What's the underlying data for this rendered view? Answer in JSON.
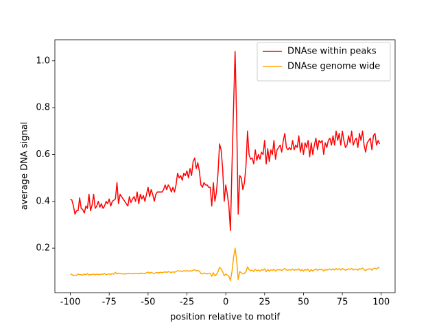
{
  "chart_data": {
    "type": "line",
    "xlabel": "position relative to motif",
    "ylabel": "average DNA signal",
    "legend": "upper right",
    "xlim": [
      -109.95,
      108.95
    ],
    "ylim": [
      0.01,
      1.09
    ],
    "xticks": [
      -100,
      -75,
      -50,
      -25,
      0,
      25,
      50,
      75,
      100
    ],
    "yticks": [
      0.2,
      0.4,
      0.6,
      0.8,
      {
        "value": 1,
        "label": "1.0"
      }
    ],
    "x": [
      -100,
      -99,
      -98,
      -97,
      -96,
      -95,
      -94,
      -93,
      -92,
      -91,
      -90,
      -89,
      -88,
      -87,
      -86,
      -85,
      -84,
      -83,
      -82,
      -81,
      -80,
      -79,
      -78,
      -77,
      -76,
      -75,
      -74,
      -73,
      -72,
      -71,
      -70,
      -69,
      -68,
      -67,
      -66,
      -65,
      -64,
      -63,
      -62,
      -61,
      -60,
      -59,
      -58,
      -57,
      -56,
      -55,
      -54,
      -53,
      -52,
      -51,
      -50,
      -49,
      -48,
      -47,
      -46,
      -45,
      -44,
      -43,
      -42,
      -41,
      -40,
      -39,
      -38,
      -37,
      -36,
      -35,
      -34,
      -33,
      -32,
      -31,
      -30,
      -29,
      -28,
      -27,
      -26,
      -25,
      -24,
      -23,
      -22,
      -21,
      -20,
      -19,
      -18,
      -17,
      -16,
      -15,
      -14,
      -13,
      -12,
      -11,
      -10,
      -9,
      -8,
      -7,
      -6,
      -5,
      -4,
      -3,
      -2,
      -1,
      0,
      1,
      2,
      3,
      4,
      5,
      6,
      7,
      8,
      9,
      10,
      11,
      12,
      13,
      14,
      15,
      16,
      17,
      18,
      19,
      20,
      21,
      22,
      23,
      24,
      25,
      26,
      27,
      28,
      29,
      30,
      31,
      32,
      33,
      34,
      35,
      36,
      37,
      38,
      39,
      40,
      41,
      42,
      43,
      44,
      45,
      46,
      47,
      48,
      49,
      50,
      51,
      52,
      53,
      54,
      55,
      56,
      57,
      58,
      59,
      60,
      61,
      62,
      63,
      64,
      65,
      66,
      67,
      68,
      69,
      70,
      71,
      72,
      73,
      74,
      75,
      76,
      77,
      78,
      79,
      80,
      81,
      82,
      83,
      84,
      85,
      86,
      87,
      88,
      89,
      90,
      91,
      92,
      93,
      94,
      95,
      96,
      97,
      98,
      99
    ],
    "series": [
      {
        "name": "DNAse within peaks",
        "color": "#ff0000",
        "values": [
          0.41,
          0.405,
          0.38,
          0.345,
          0.36,
          0.36,
          0.415,
          0.37,
          0.365,
          0.35,
          0.38,
          0.37,
          0.43,
          0.36,
          0.385,
          0.43,
          0.37,
          0.38,
          0.4,
          0.375,
          0.39,
          0.37,
          0.38,
          0.4,
          0.39,
          0.41,
          0.38,
          0.4,
          0.405,
          0.41,
          0.48,
          0.39,
          0.43,
          0.42,
          0.41,
          0.4,
          0.39,
          0.38,
          0.42,
          0.395,
          0.41,
          0.42,
          0.4,
          0.44,
          0.39,
          0.43,
          0.41,
          0.425,
          0.4,
          0.43,
          0.46,
          0.42,
          0.45,
          0.43,
          0.4,
          0.43,
          0.44,
          0.44,
          0.44,
          0.44,
          0.45,
          0.47,
          0.45,
          0.47,
          0.46,
          0.44,
          0.46,
          0.44,
          0.47,
          0.52,
          0.5,
          0.51,
          0.49,
          0.52,
          0.51,
          0.53,
          0.5,
          0.54,
          0.51,
          0.57,
          0.585,
          0.54,
          0.565,
          0.53,
          0.47,
          0.46,
          0.48,
          0.47,
          0.47,
          0.46,
          0.46,
          0.38,
          0.48,
          0.4,
          0.44,
          0.52,
          0.645,
          0.62,
          0.54,
          0.4,
          0.47,
          0.43,
          0.38,
          0.275,
          0.55,
          0.8,
          1.04,
          0.75,
          0.345,
          0.51,
          0.5,
          0.45,
          0.48,
          0.55,
          0.7,
          0.6,
          0.58,
          0.585,
          0.56,
          0.62,
          0.575,
          0.6,
          0.58,
          0.61,
          0.6,
          0.66,
          0.56,
          0.625,
          0.57,
          0.62,
          0.6,
          0.66,
          0.58,
          0.62,
          0.63,
          0.64,
          0.61,
          0.66,
          0.69,
          0.63,
          0.62,
          0.63,
          0.62,
          0.66,
          0.62,
          0.64,
          0.63,
          0.68,
          0.61,
          0.65,
          0.6,
          0.65,
          0.63,
          0.66,
          0.59,
          0.65,
          0.6,
          0.64,
          0.67,
          0.62,
          0.66,
          0.65,
          0.66,
          0.6,
          0.65,
          0.63,
          0.66,
          0.67,
          0.64,
          0.68,
          0.64,
          0.7,
          0.66,
          0.69,
          0.64,
          0.7,
          0.66,
          0.63,
          0.64,
          0.68,
          0.65,
          0.7,
          0.64,
          0.66,
          0.67,
          0.63,
          0.69,
          0.66,
          0.7,
          0.64,
          0.61,
          0.65,
          0.66,
          0.67,
          0.62,
          0.68,
          0.69,
          0.64,
          0.66,
          0.645
        ]
      },
      {
        "name": "DNAse genome wide",
        "color": "#ffa500",
        "values": [
          0.09,
          0.088,
          0.082,
          0.085,
          0.084,
          0.09,
          0.086,
          0.087,
          0.085,
          0.09,
          0.086,
          0.092,
          0.085,
          0.088,
          0.087,
          0.09,
          0.086,
          0.089,
          0.088,
          0.087,
          0.09,
          0.088,
          0.092,
          0.087,
          0.089,
          0.09,
          0.088,
          0.091,
          0.089,
          0.097,
          0.09,
          0.094,
          0.092,
          0.09,
          0.091,
          0.089,
          0.092,
          0.09,
          0.093,
          0.091,
          0.09,
          0.093,
          0.091,
          0.092,
          0.09,
          0.094,
          0.092,
          0.093,
          0.091,
          0.095,
          0.098,
          0.093,
          0.097,
          0.094,
          0.092,
          0.095,
          0.096,
          0.095,
          0.097,
          0.096,
          0.097,
          0.099,
          0.096,
          0.1,
          0.098,
          0.096,
          0.099,
          0.097,
          0.1,
          0.104,
          0.102,
          0.103,
          0.1,
          0.104,
          0.102,
          0.105,
          0.101,
          0.104,
          0.102,
          0.106,
          0.108,
          0.103,
          0.105,
          0.102,
          0.092,
          0.09,
          0.094,
          0.092,
          0.09,
          0.093,
          0.092,
          0.08,
          0.095,
          0.082,
          0.088,
          0.1,
          0.118,
          0.112,
          0.1,
          0.082,
          0.09,
          0.085,
          0.08,
          0.062,
          0.1,
          0.16,
          0.2,
          0.15,
          0.065,
          0.1,
          0.095,
          0.09,
          0.092,
          0.1,
          0.12,
          0.108,
          0.104,
          0.106,
          0.1,
          0.11,
          0.103,
          0.107,
          0.102,
          0.108,
          0.106,
          0.112,
          0.1,
          0.109,
          0.102,
          0.108,
          0.105,
          0.11,
          0.102,
          0.108,
          0.107,
          0.109,
          0.104,
          0.11,
          0.113,
          0.107,
          0.106,
          0.108,
          0.106,
          0.111,
          0.105,
          0.109,
          0.107,
          0.112,
          0.103,
          0.109,
          0.102,
          0.109,
          0.106,
          0.11,
          0.1,
          0.109,
          0.102,
          0.108,
          0.111,
          0.105,
          0.11,
          0.108,
          0.11,
          0.102,
          0.109,
          0.106,
          0.11,
          0.111,
          0.107,
          0.112,
          0.107,
          0.113,
          0.109,
          0.112,
          0.107,
          0.114,
          0.109,
          0.106,
          0.108,
          0.112,
          0.109,
          0.114,
          0.107,
          0.11,
          0.111,
          0.106,
          0.113,
          0.11,
          0.115,
          0.108,
          0.104,
          0.11,
          0.111,
          0.112,
          0.106,
          0.113,
          0.115,
          0.11,
          0.117,
          0.116
        ]
      }
    ]
  }
}
